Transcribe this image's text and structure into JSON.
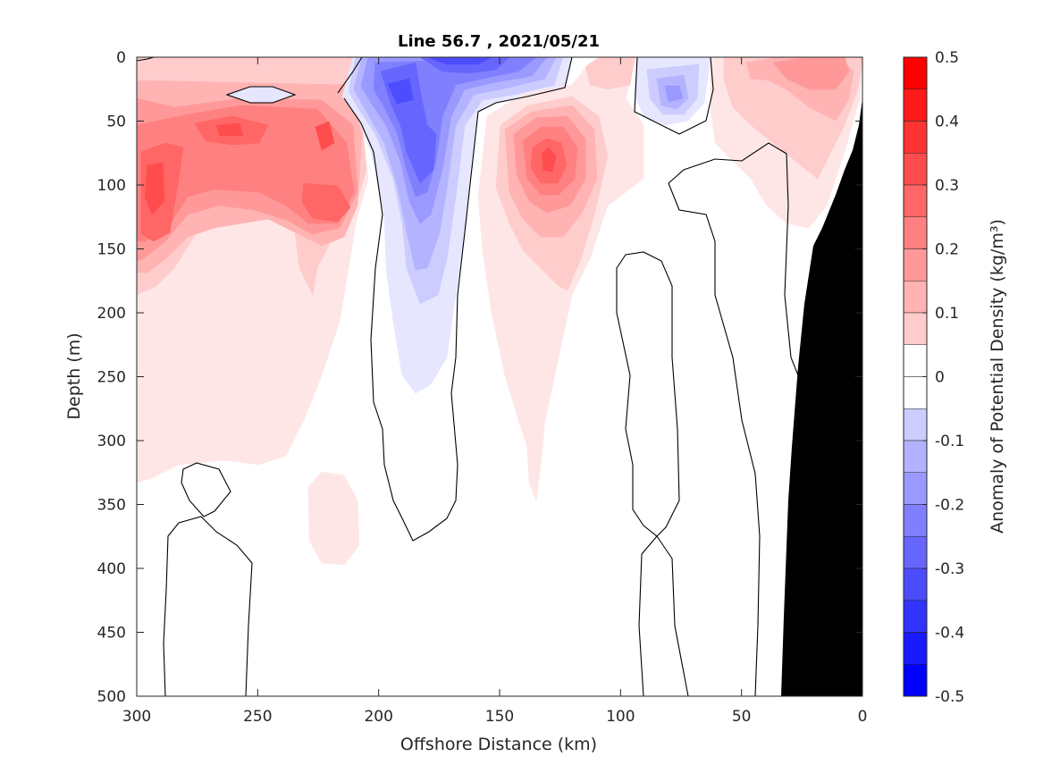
{
  "chart_data": {
    "type": "heatmap",
    "subtype": "filled-contour-section",
    "title": "Line 56.7 , 2021/05/21",
    "xlabel": "Offshore Distance (km)",
    "ylabel": "Depth (m)",
    "colorbar_label": "Anomaly of Potential Density (kg/m³)",
    "x_reversed": true,
    "y_reversed": true,
    "xlim": [
      300,
      0
    ],
    "ylim": [
      0,
      500
    ],
    "xticks": [
      300,
      250,
      200,
      150,
      100,
      50,
      0
    ],
    "yticks": [
      0,
      50,
      100,
      150,
      200,
      250,
      300,
      350,
      400,
      450,
      500
    ],
    "colorbar": {
      "range": [
        -0.5,
        0.5
      ],
      "step": 0.05,
      "ticks": [
        0.5,
        0.4,
        0.3,
        0.2,
        0.1,
        0,
        -0.1,
        -0.2,
        -0.3,
        -0.4,
        -0.5
      ],
      "colors": {
        "negative": "#0000ff",
        "zero": "#ffffff",
        "positive": "#ff0000"
      }
    },
    "grid": false,
    "topography_color": "#000000",
    "features": [
      {
        "kind": "positive-core",
        "x_km": 290,
        "depth_m": 110,
        "anomaly": 0.35
      },
      {
        "kind": "positive-core",
        "x_km": 265,
        "depth_m": 55,
        "anomaly": 0.3
      },
      {
        "kind": "positive-core",
        "x_km": 215,
        "depth_m": 120,
        "anomaly": 0.3
      },
      {
        "kind": "negative-core",
        "x_km": 185,
        "depth_m": 25,
        "anomaly": -0.35
      },
      {
        "kind": "negative-core",
        "x_km": 182,
        "depth_m": 100,
        "anomaly": -0.3
      },
      {
        "kind": "negative-core",
        "x_km": 165,
        "depth_m": 5,
        "anomaly": -0.3
      },
      {
        "kind": "positive-core",
        "x_km": 130,
        "depth_m": 85,
        "anomaly": 0.35
      },
      {
        "kind": "negative-core",
        "x_km": 78,
        "depth_m": 30,
        "anomaly": -0.15
      },
      {
        "kind": "positive-core",
        "x_km": 15,
        "depth_m": 10,
        "anomaly": 0.15
      }
    ]
  }
}
